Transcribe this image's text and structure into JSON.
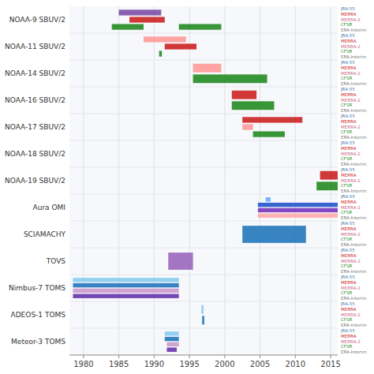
{
  "chart_data": {
    "type": "timeline",
    "orientation": "horizontal",
    "grid": true,
    "categories": [
      "NOAA-9 SBUV/2",
      "NOAA-11 SBUV/2",
      "NOAA-14 SBUV/2",
      "NOAA-16 SBUV/2",
      "NOAA-17 SBUV/2",
      "NOAA-18 SBUV/2",
      "NOAA-19 SBUV/2",
      "Aura OMI",
      "SCIAMACHY",
      "TOVS",
      "Nimbus-7 TOMS",
      "ADEOS-1 TOMS",
      "Meteor-3 TOMS"
    ],
    "values": [
      [
        {
          "start": 1985.0,
          "end": 1991.0,
          "color": "#7b4faa"
        },
        {
          "start": 1986.5,
          "end": 1991.5,
          "color": "#cc2222"
        },
        {
          "start": 1984.0,
          "end": 1988.5,
          "color": "#228b22"
        },
        {
          "start": 1993.5,
          "end": 1999.5,
          "color": "#228b22"
        }
      ],
      [
        {
          "start": 1988.5,
          "end": 1994.5,
          "color": "#ff9999"
        },
        {
          "start": 1991.5,
          "end": 1996.0,
          "color": "#cc2222"
        },
        {
          "start": 1990.7,
          "end": 1991.1,
          "color": "#228b22"
        }
      ],
      [
        {
          "start": 1995.5,
          "end": 1999.5,
          "color": "#ff9999"
        },
        {
          "start": 1995.5,
          "end": 2006.0,
          "color": "#228b22"
        }
      ],
      [
        {
          "start": 2001.0,
          "end": 2004.5,
          "color": "#cc2222"
        },
        {
          "start": 2001.0,
          "end": 2007.0,
          "color": "#228b22"
        }
      ],
      [
        {
          "start": 2002.5,
          "end": 2011.0,
          "color": "#cc2222"
        },
        {
          "start": 2002.5,
          "end": 2004.0,
          "color": "#ff9999"
        },
        {
          "start": 2004.0,
          "end": 2008.5,
          "color": "#228b22"
        }
      ],
      [],
      [
        {
          "start": 2013.5,
          "end": 2016.0,
          "color": "#cc2222"
        },
        {
          "start": 2013.0,
          "end": 2016.0,
          "color": "#228b22"
        }
      ],
      [
        {
          "start": 2005.8,
          "end": 2006.5,
          "color": "#66aaff"
        },
        {
          "start": 2004.7,
          "end": 2016.0,
          "color": "#2255cc"
        },
        {
          "start": 2004.7,
          "end": 2016.0,
          "color": "#7733bb"
        },
        {
          "start": 2004.7,
          "end": 2016.0,
          "color": "#ffaaaa"
        }
      ],
      [
        {
          "start": 2002.5,
          "end": 2011.5,
          "color": "#2277bb"
        }
      ],
      [
        {
          "start": 1992.0,
          "end": 1995.5,
          "color": "#9966bb"
        }
      ],
      [
        {
          "start": 1978.5,
          "end": 1993.5,
          "color": "#88ccee"
        },
        {
          "start": 1978.5,
          "end": 1993.5,
          "color": "#2277bb"
        },
        {
          "start": 1978.5,
          "end": 1993.5,
          "color": "#cc99cc"
        },
        {
          "start": 1978.5,
          "end": 1993.5,
          "color": "#6633aa"
        }
      ],
      [
        {
          "start": 1996.7,
          "end": 1997.0,
          "color": "#88ccee"
        },
        {
          "start": 1996.8,
          "end": 1997.1,
          "color": "#2277bb"
        }
      ],
      [
        {
          "start": 1991.5,
          "end": 1993.5,
          "color": "#88ccee"
        },
        {
          "start": 1991.5,
          "end": 1993.5,
          "color": "#2277bb"
        },
        {
          "start": 1991.8,
          "end": 1993.5,
          "color": "#cc99cc"
        },
        {
          "start": 1991.8,
          "end": 1993.2,
          "color": "#6633aa"
        }
      ]
    ],
    "annotations": [
      {
        "text": "JRA-55",
        "color": "#4477aa"
      },
      {
        "text": "MERRA",
        "color": "#cc2222"
      },
      {
        "text": "MERRA-2",
        "color": "#cc6688"
      },
      {
        "text": "CFSR",
        "color": "#228b22"
      },
      {
        "text": "ERA-Interim",
        "color": "#777777"
      }
    ],
    "xlim": [
      1978,
      2016
    ],
    "xticks": [
      1980,
      1985,
      1990,
      1995,
      2000,
      2005,
      2010,
      2015
    ]
  }
}
